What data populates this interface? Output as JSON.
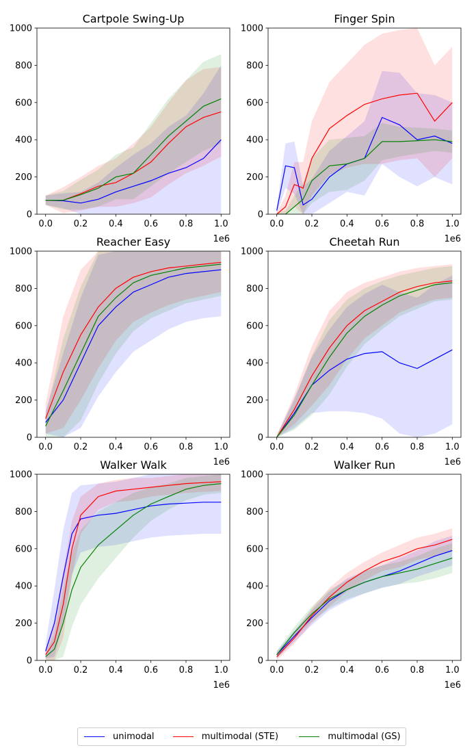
{
  "legend": {
    "items": [
      {
        "label": "unimodal",
        "color": "#0000ff"
      },
      {
        "label": "multimodal (STE)",
        "color": "#ff0000"
      },
      {
        "label": "multimodal (GS)",
        "color": "#008000"
      }
    ]
  },
  "chart_data": [
    {
      "type": "line",
      "title": "Cartpole Swing-Up",
      "xlabel": "",
      "ylabel": "",
      "x_scale_label": "1e6",
      "xlim": [
        0,
        1
      ],
      "ylim": [
        0,
        1000
      ],
      "xticks": [
        "0.0",
        "0.2",
        "0.4",
        "0.6",
        "0.8",
        "1.0"
      ],
      "yticks": [
        "0",
        "200",
        "400",
        "600",
        "800",
        "1000"
      ],
      "x": [
        0,
        0.1,
        0.2,
        0.3,
        0.4,
        0.5,
        0.6,
        0.7,
        0.8,
        0.9,
        1.0
      ],
      "series": [
        {
          "name": "unimodal",
          "color": "#0000ff",
          "values": [
            75,
            72,
            60,
            80,
            120,
            150,
            180,
            220,
            250,
            300,
            400
          ],
          "band": [
            25,
            40,
            60,
            90,
            130,
            170,
            200,
            250,
            280,
            350,
            400
          ]
        },
        {
          "name": "multimodal (STE)",
          "color": "#ff0000",
          "values": [
            75,
            75,
            110,
            150,
            170,
            220,
            280,
            380,
            470,
            520,
            550
          ],
          "band": [
            25,
            70,
            90,
            110,
            130,
            160,
            190,
            220,
            250,
            260,
            240
          ]
        },
        {
          "name": "multimodal (GS)",
          "color": "#008000",
          "values": [
            75,
            75,
            105,
            140,
            200,
            220,
            320,
            420,
            500,
            580,
            620
          ],
          "band": [
            25,
            50,
            80,
            100,
            120,
            140,
            170,
            200,
            220,
            240,
            240
          ]
        }
      ]
    },
    {
      "type": "line",
      "title": "Finger Spin",
      "xlabel": "",
      "ylabel": "",
      "x_scale_label": "1e6",
      "xlim": [
        0,
        1
      ],
      "ylim": [
        0,
        1000
      ],
      "xticks": [
        "0.0",
        "0.2",
        "0.4",
        "0.6",
        "0.8",
        "1.0"
      ],
      "yticks": [
        "0",
        "200",
        "400",
        "600",
        "800",
        "1000"
      ],
      "x": [
        0,
        0.05,
        0.1,
        0.15,
        0.2,
        0.3,
        0.4,
        0.5,
        0.6,
        0.7,
        0.8,
        0.9,
        1.0
      ],
      "series": [
        {
          "name": "unimodal",
          "color": "#0000ff",
          "values": [
            20,
            260,
            250,
            50,
            80,
            200,
            270,
            300,
            520,
            480,
            400,
            420,
            380
          ],
          "band": [
            20,
            120,
            140,
            100,
            110,
            140,
            150,
            200,
            250,
            280,
            250,
            220,
            220
          ]
        },
        {
          "name": "multimodal (STE)",
          "color": "#ff0000",
          "values": [
            0,
            40,
            160,
            140,
            300,
            460,
            530,
            590,
            620,
            640,
            650,
            500,
            600
          ],
          "band": [
            10,
            60,
            120,
            140,
            200,
            250,
            280,
            320,
            350,
            350,
            350,
            300,
            300
          ]
        },
        {
          "name": "multimodal (GS)",
          "color": "#008000",
          "values": [
            0,
            0,
            40,
            80,
            180,
            260,
            270,
            300,
            390,
            390,
            395,
            400,
            390
          ],
          "band": [
            10,
            20,
            60,
            90,
            120,
            140,
            140,
            120,
            100,
            80,
            70,
            60,
            60
          ]
        }
      ]
    },
    {
      "type": "line",
      "title": "Reacher Easy",
      "xlabel": "",
      "ylabel": "",
      "x_scale_label": "1e6",
      "xlim": [
        0,
        1
      ],
      "ylim": [
        0,
        1000
      ],
      "xticks": [
        "0.0",
        "0.2",
        "0.4",
        "0.6",
        "0.8",
        "1.0"
      ],
      "yticks": [
        "0",
        "200",
        "400",
        "600",
        "800",
        "1000"
      ],
      "x": [
        0,
        0.1,
        0.2,
        0.3,
        0.4,
        0.5,
        0.6,
        0.7,
        0.8,
        0.9,
        1.0
      ],
      "series": [
        {
          "name": "unimodal",
          "color": "#0000ff",
          "values": [
            80,
            200,
            400,
            600,
            700,
            780,
            820,
            860,
            880,
            890,
            900
          ],
          "band": [
            60,
            250,
            350,
            380,
            350,
            320,
            300,
            280,
            260,
            250,
            250
          ]
        },
        {
          "name": "multimodal (STE)",
          "color": "#ff0000",
          "values": [
            100,
            350,
            550,
            700,
            800,
            860,
            890,
            910,
            920,
            930,
            940
          ],
          "band": [
            80,
            300,
            350,
            330,
            280,
            240,
            220,
            200,
            180,
            170,
            160
          ]
        },
        {
          "name": "multimodal (GS)",
          "color": "#008000",
          "values": [
            60,
            250,
            450,
            650,
            750,
            830,
            870,
            890,
            910,
            920,
            930
          ],
          "band": [
            60,
            280,
            360,
            360,
            300,
            260,
            230,
            210,
            190,
            180,
            170
          ]
        }
      ]
    },
    {
      "type": "line",
      "title": "Cheetah Run",
      "xlabel": "",
      "ylabel": "",
      "x_scale_label": "1e6",
      "xlim": [
        0,
        1
      ],
      "ylim": [
        0,
        1000
      ],
      "xticks": [
        "0.0",
        "0.2",
        "0.4",
        "0.6",
        "0.8",
        "1.0"
      ],
      "yticks": [
        "0",
        "200",
        "400",
        "600",
        "800",
        "1000"
      ],
      "x": [
        0,
        0.1,
        0.2,
        0.3,
        0.4,
        0.5,
        0.6,
        0.7,
        0.8,
        0.9,
        1.0
      ],
      "series": [
        {
          "name": "unimodal",
          "color": "#0000ff",
          "values": [
            0,
            130,
            280,
            360,
            420,
            450,
            460,
            400,
            370,
            420,
            470
          ],
          "band": [
            10,
            80,
            150,
            220,
            280,
            320,
            360,
            380,
            380,
            400,
            400
          ]
        },
        {
          "name": "multimodal (STE)",
          "color": "#ff0000",
          "values": [
            0,
            150,
            330,
            480,
            600,
            680,
            730,
            780,
            810,
            830,
            840
          ],
          "band": [
            10,
            80,
            160,
            200,
            180,
            150,
            130,
            110,
            100,
            90,
            90
          ]
        },
        {
          "name": "multimodal (GS)",
          "color": "#008000",
          "values": [
            0,
            120,
            280,
            430,
            560,
            650,
            710,
            760,
            790,
            820,
            830
          ],
          "band": [
            10,
            80,
            160,
            200,
            180,
            150,
            130,
            110,
            100,
            90,
            90
          ]
        }
      ]
    },
    {
      "type": "line",
      "title": "Walker Walk",
      "xlabel": "",
      "ylabel": "",
      "x_scale_label": "1e6",
      "xlim": [
        0,
        1
      ],
      "ylim": [
        0,
        1000
      ],
      "xticks": [
        "0.0",
        "0.2",
        "0.4",
        "0.6",
        "0.8",
        "1.0"
      ],
      "yticks": [
        "0",
        "200",
        "400",
        "600",
        "800",
        "1000"
      ],
      "x": [
        0,
        0.05,
        0.1,
        0.15,
        0.2,
        0.3,
        0.4,
        0.5,
        0.6,
        0.7,
        0.8,
        0.9,
        1.0
      ],
      "series": [
        {
          "name": "unimodal",
          "color": "#0000ff",
          "values": [
            50,
            200,
            450,
            680,
            760,
            780,
            790,
            810,
            830,
            840,
            845,
            850,
            850
          ],
          "band": [
            40,
            180,
            250,
            220,
            180,
            170,
            170,
            170,
            170,
            170,
            170,
            170,
            170
          ]
        },
        {
          "name": "multimodal (STE)",
          "color": "#ff0000",
          "values": [
            30,
            100,
            300,
            600,
            780,
            880,
            910,
            920,
            930,
            940,
            950,
            955,
            960
          ],
          "band": [
            30,
            100,
            180,
            150,
            100,
            70,
            60,
            60,
            50,
            50,
            50,
            50,
            50
          ]
        },
        {
          "name": "multimodal (GS)",
          "color": "#008000",
          "values": [
            20,
            60,
            200,
            380,
            500,
            620,
            700,
            780,
            840,
            880,
            920,
            940,
            950
          ],
          "band": [
            20,
            80,
            180,
            200,
            200,
            180,
            150,
            120,
            90,
            70,
            60,
            50,
            50
          ]
        }
      ]
    },
    {
      "type": "line",
      "title": "Walker Run",
      "xlabel": "",
      "ylabel": "",
      "x_scale_label": "1e6",
      "xlim": [
        0,
        1
      ],
      "ylim": [
        0,
        1000
      ],
      "xticks": [
        "0.0",
        "0.2",
        "0.4",
        "0.6",
        "0.8",
        "1.0"
      ],
      "yticks": [
        "0",
        "200",
        "400",
        "600",
        "800",
        "1000"
      ],
      "x": [
        0,
        0.1,
        0.2,
        0.3,
        0.4,
        0.5,
        0.6,
        0.7,
        0.8,
        0.9,
        1.0
      ],
      "series": [
        {
          "name": "unimodal",
          "color": "#0000ff",
          "values": [
            30,
            130,
            230,
            320,
            380,
            420,
            450,
            480,
            520,
            560,
            590
          ],
          "band": [
            20,
            30,
            40,
            50,
            60,
            60,
            60,
            70,
            70,
            80,
            80
          ]
        },
        {
          "name": "multimodal (STE)",
          "color": "#ff0000",
          "values": [
            20,
            120,
            240,
            340,
            420,
            480,
            530,
            560,
            600,
            620,
            650
          ],
          "band": [
            20,
            30,
            40,
            50,
            50,
            50,
            50,
            60,
            60,
            60,
            60
          ]
        },
        {
          "name": "multimodal (GS)",
          "color": "#008000",
          "values": [
            30,
            150,
            250,
            330,
            380,
            420,
            450,
            470,
            490,
            520,
            550
          ],
          "band": [
            20,
            30,
            40,
            50,
            50,
            60,
            60,
            60,
            70,
            80,
            80
          ]
        }
      ]
    }
  ]
}
